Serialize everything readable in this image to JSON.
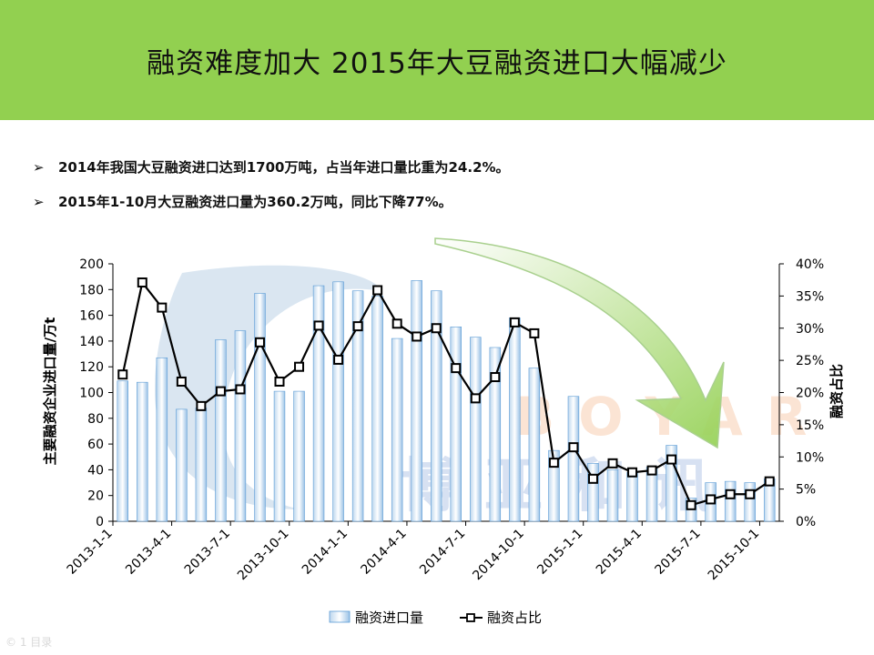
{
  "title": "融资难度加大  2015年大豆融资进口大幅减少",
  "bullets": [
    {
      "marker": "➢",
      "text": "2014年我国大豆融资进口达到1700万吨，占当年进口量比重为24.2%。"
    },
    {
      "marker": "➢",
      "text": "2015年1-10月大豆融资进口量为360.2万吨，同比下降77%。"
    }
  ],
  "watermark": {
    "latin": "BOYAR",
    "chinese": "博亚和讯"
  },
  "footer_text": "© 1 目录",
  "chart_data": {
    "type": "bar",
    "ylabel": "主要融资企业进口量/万t",
    "y2label": "融资占比",
    "ylim": [
      0,
      200
    ],
    "y2lim": [
      0,
      40
    ],
    "yticks": [
      "0",
      "20",
      "40",
      "60",
      "80",
      "100",
      "120",
      "140",
      "160",
      "180",
      "200"
    ],
    "y2ticks": [
      "0%",
      "5%",
      "10%",
      "15%",
      "20%",
      "25%",
      "30%",
      "35%",
      "40%"
    ],
    "x_tick_labels": [
      "2013-1-1",
      "2013-4-1",
      "2013-7-1",
      "2013-10-1",
      "2014-1-1",
      "2014-4-1",
      "2014-7-1",
      "2014-10-1",
      "2015-1-1",
      "2015-4-1",
      "2015-7-1",
      "2015-10-1"
    ],
    "categories": [
      "2013-1",
      "2013-2",
      "2013-3",
      "2013-4",
      "2013-5",
      "2013-6",
      "2013-7",
      "2013-8",
      "2013-9",
      "2013-10",
      "2013-11",
      "2013-12",
      "2014-1",
      "2014-2",
      "2014-3",
      "2014-4",
      "2014-5",
      "2014-6",
      "2014-7",
      "2014-8",
      "2014-9",
      "2014-10",
      "2014-11",
      "2014-12",
      "2015-1",
      "2015-2",
      "2015-3",
      "2015-4",
      "2015-5",
      "2015-6",
      "2015-7",
      "2015-8",
      "2015-9",
      "2015-10"
    ],
    "series": [
      {
        "name": "融资进口量",
        "type": "bar",
        "axis": "left",
        "color": "#9dc3e6",
        "values": [
          109,
          108,
          127,
          87,
          88,
          141,
          148,
          177,
          101,
          101,
          183,
          186,
          179,
          175,
          142,
          187,
          179,
          151,
          143,
          135,
          158,
          119,
          55,
          97,
          45,
          40,
          38,
          42,
          59,
          18,
          30,
          31,
          30,
          33
        ]
      },
      {
        "name": "融资占比",
        "type": "line",
        "axis": "right",
        "color": "#000000",
        "values": [
          22.8,
          37.1,
          33.2,
          21.7,
          17.9,
          20.2,
          20.5,
          27.8,
          21.7,
          24.0,
          30.4,
          25.1,
          30.3,
          35.9,
          30.7,
          28.7,
          30.0,
          23.8,
          19.1,
          22.4,
          30.9,
          29.2,
          9.1,
          11.5,
          6.6,
          9.0,
          7.6,
          7.9,
          9.6,
          2.5,
          3.4,
          4.2,
          4.2,
          6.2
        ]
      }
    ],
    "legend": "bottom",
    "grid": false
  }
}
